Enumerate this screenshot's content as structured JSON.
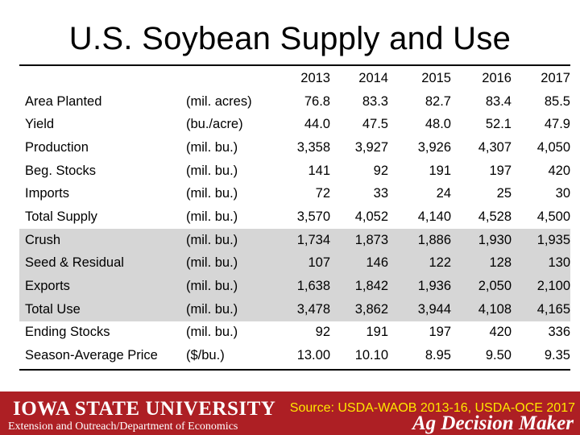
{
  "title": "U.S. Soybean Supply and Use",
  "years": [
    "2013",
    "2014",
    "2015",
    "2016",
    "2017"
  ],
  "rows": [
    {
      "label": "Area Planted",
      "unit": "(mil. acres)",
      "values": [
        "76.8",
        "83.3",
        "82.7",
        "83.4",
        "85.5"
      ],
      "shaded": false
    },
    {
      "label": "Yield",
      "unit": "(bu./acre)",
      "values": [
        "44.0",
        "47.5",
        "48.0",
        "52.1",
        "47.9"
      ],
      "shaded": false
    },
    {
      "label": "Production",
      "unit": "(mil. bu.)",
      "values": [
        "3,358",
        "3,927",
        "3,926",
        "4,307",
        "4,050"
      ],
      "shaded": false
    },
    {
      "label": "Beg. Stocks",
      "unit": "(mil. bu.)",
      "values": [
        "141",
        "92",
        "191",
        "197",
        "420"
      ],
      "shaded": false
    },
    {
      "label": "Imports",
      "unit": "(mil. bu.)",
      "values": [
        "72",
        "33",
        "24",
        "25",
        "30"
      ],
      "shaded": false
    },
    {
      "label": "Total Supply",
      "unit": "(mil. bu.)",
      "values": [
        "3,570",
        "4,052",
        "4,140",
        "4,528",
        "4,500"
      ],
      "shaded": false
    },
    {
      "label": "Crush",
      "unit": "(mil. bu.)",
      "values": [
        "1,734",
        "1,873",
        "1,886",
        "1,930",
        "1,935"
      ],
      "shaded": true
    },
    {
      "label": "Seed & Residual",
      "unit": "(mil. bu.)",
      "values": [
        "107",
        "146",
        "122",
        "128",
        "130"
      ],
      "shaded": true
    },
    {
      "label": "Exports",
      "unit": "(mil. bu.)",
      "values": [
        "1,638",
        "1,842",
        "1,936",
        "2,050",
        "2,100"
      ],
      "shaded": true
    },
    {
      "label": "Total Use",
      "unit": "(mil. bu.)",
      "values": [
        "3,478",
        "3,862",
        "3,944",
        "4,108",
        "4,165"
      ],
      "shaded": true
    },
    {
      "label": "Ending Stocks",
      "unit": "(mil. bu.)",
      "values": [
        "92",
        "191",
        "197",
        "420",
        "336"
      ],
      "shaded": false
    },
    {
      "label": "Season-Average Price",
      "unit": "($/bu.)",
      "values": [
        "13.00",
        "10.10",
        "8.95",
        "9.50",
        "9.35"
      ],
      "shaded": false
    }
  ],
  "footer": {
    "brand": "Iowa State University",
    "source": "Source: USDA-WAOB 2013-16, USDA-OCE 2017",
    "extension": "Extension and Outreach/Department of Economics",
    "ag_decision_maker": "Ag Decision Maker"
  },
  "colors": {
    "footer_bg": "#ad1f24",
    "source_text": "#ffe800",
    "shade": "#d6d6d6"
  }
}
